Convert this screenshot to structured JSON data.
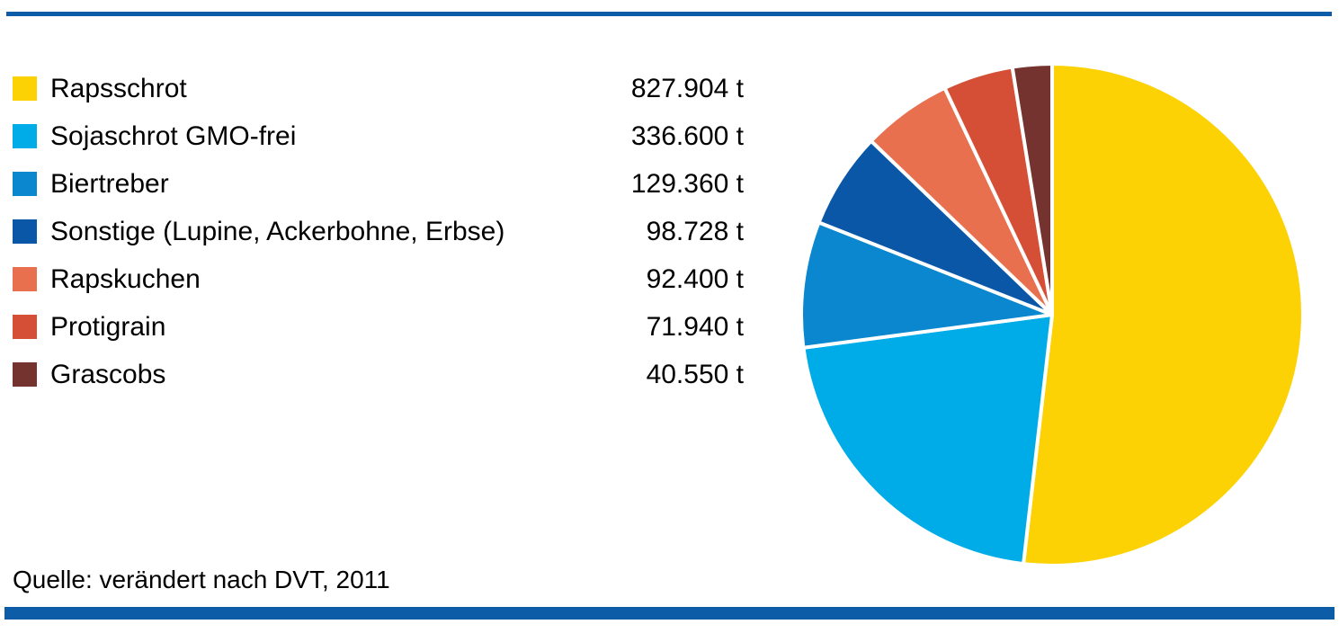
{
  "source": "Quelle: verändert nach DVT, 2011",
  "accent_bar_color": "#0d5ca8",
  "chart_data": {
    "type": "pie",
    "title": "",
    "unit": "t",
    "legend_position": "left",
    "start_angle_deg": 0,
    "direction": "clockwise",
    "slice_gap_color": "#ffffff",
    "categories": [
      "Rapsschrot",
      "Sojaschrot GMO-frei",
      "Biertreber",
      "Sonstige (Lupine, Ackerbohne, Erbse)",
      "Rapskuchen",
      "Protigrain",
      "Grascobs"
    ],
    "values": [
      827904,
      336600,
      129360,
      98728,
      92400,
      71940,
      40550
    ],
    "value_labels": [
      "827.904 t",
      "336.600 t",
      "129.360 t",
      "98.728 t",
      "92.400 t",
      "71.940 t",
      "40.550 t"
    ],
    "colors": [
      "#fcd205",
      "#00ace8",
      "#0a87ce",
      "#0a57a7",
      "#e8704f",
      "#d44f36",
      "#74332e"
    ]
  }
}
